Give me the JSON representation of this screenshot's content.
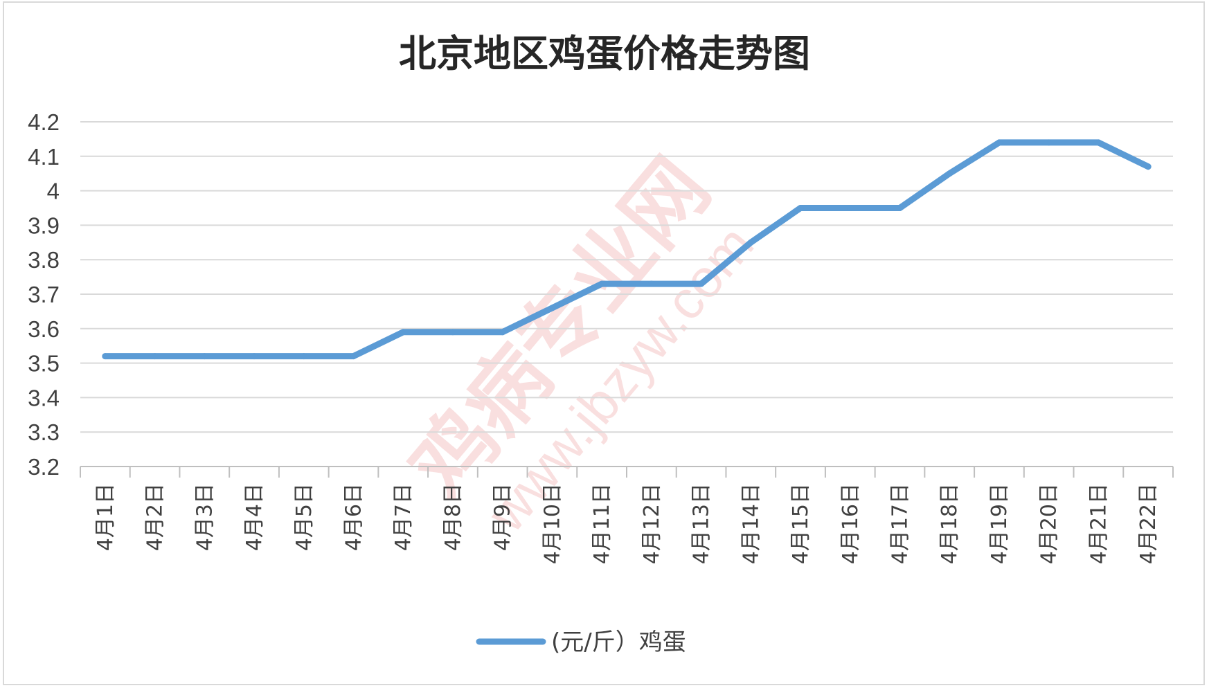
{
  "chart_data": {
    "type": "line",
    "title": "北京地区鸡蛋价格走势图",
    "categories": [
      "4月1日",
      "4月2日",
      "4月3日",
      "4月4日",
      "4月5日",
      "4月6日",
      "4月7日",
      "4月8日",
      "4月9日",
      "4月10日",
      "4月11日",
      "4月12日",
      "4月13日",
      "4月14日",
      "4月15日",
      "4月16日",
      "4月17日",
      "4月18日",
      "4月19日",
      "4月20日",
      "4月21日",
      "4月22日"
    ],
    "series": [
      {
        "name": "(元/斤）鸡蛋",
        "color": "#5b9bd5",
        "values": [
          3.52,
          3.52,
          3.52,
          3.52,
          3.52,
          3.52,
          3.59,
          3.59,
          3.59,
          3.66,
          3.73,
          3.73,
          3.73,
          3.85,
          3.95,
          3.95,
          3.95,
          4.05,
          4.14,
          4.14,
          4.14,
          4.07
        ]
      }
    ],
    "ylim": [
      3.2,
      4.2
    ],
    "yticks": [
      "3.2",
      "3.3",
      "3.4",
      "3.5",
      "3.6",
      "3.7",
      "3.8",
      "3.9",
      "4",
      "4.1",
      "4.2"
    ],
    "xlabel": "",
    "ylabel": "",
    "grid": true,
    "legend_position": "bottom"
  },
  "watermark": {
    "text": "鸡病专业网",
    "url": "www.jbzyw.com",
    "color": "#e57373"
  }
}
